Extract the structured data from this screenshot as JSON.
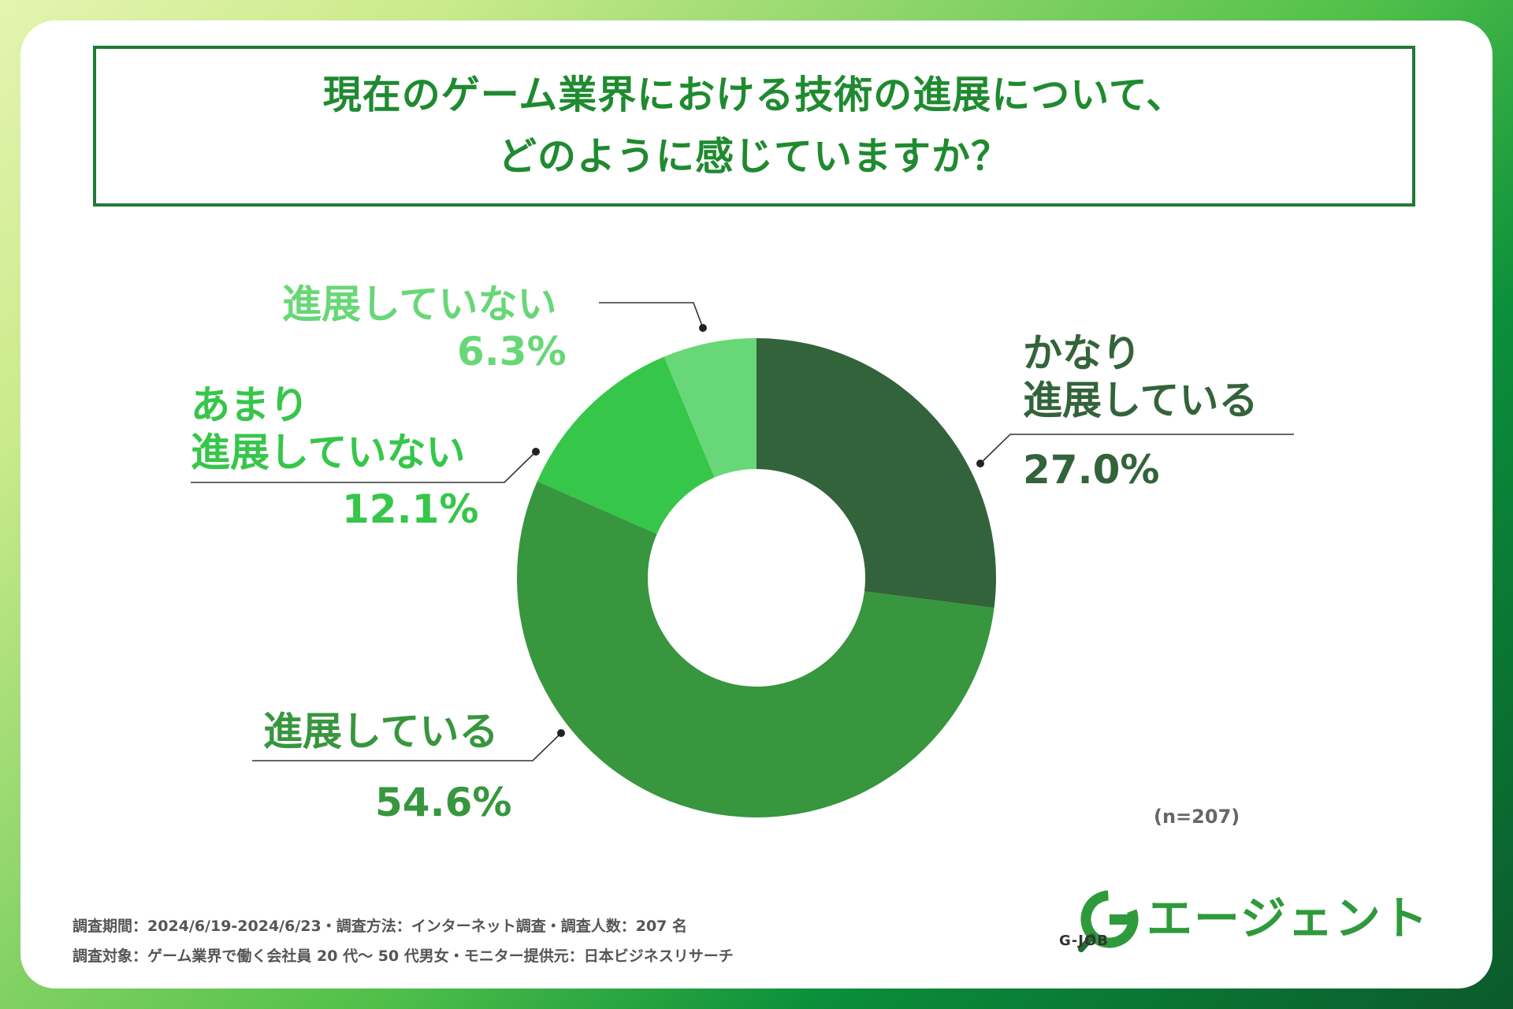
{
  "title": {
    "line1": "現在のゲーム業界における技術の進展について、",
    "line2": "どのように感じていますか？"
  },
  "chart_data": {
    "type": "pie",
    "donut": true,
    "title": "現在のゲーム業界における技術の進展について、どのように感じていますか？",
    "slices": [
      {
        "label": "かなり進展している",
        "label_lines": [
          "かなり",
          "進展している"
        ],
        "value": 27.0,
        "display": "27.0%",
        "color": "#33633a"
      },
      {
        "label": "進展している",
        "label_lines": [
          "進展している"
        ],
        "value": 54.6,
        "display": "54.6%",
        "color": "#37963e"
      },
      {
        "label": "あまり進展していない",
        "label_lines": [
          "あまり",
          "進展していない"
        ],
        "value": 12.1,
        "display": "12.1%",
        "color": "#36c64a"
      },
      {
        "label": "進展していない",
        "label_lines": [
          "進展していない"
        ],
        "value": 6.3,
        "display": "6.3%",
        "color": "#68d777"
      }
    ]
  },
  "sample_size": "(n=207)",
  "footnotes": {
    "line1": "調査期間：2024/6/19-2024/6/23・調査方法：インターネット調査・調査人数：207 名",
    "line2": "調査対象：ゲーム業界で働く会社員 20 代〜 50 代男女・モニター提供元：日本ビジネスリサーチ"
  },
  "brand": {
    "logo_letter": "G",
    "logo_caption": "G-JOB",
    "name": "エージェント",
    "color": "#2f9a3c"
  }
}
